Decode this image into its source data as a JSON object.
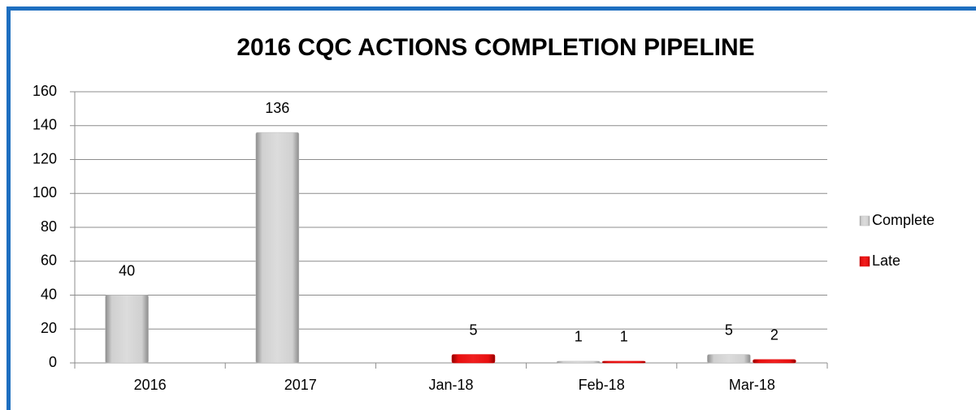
{
  "chart_data": {
    "type": "bar",
    "title": "2016 CQC ACTIONS COMPLETION PIPELINE",
    "categories": [
      "2016",
      "2017",
      "Jan-18",
      "Feb-18",
      "Mar-18"
    ],
    "series": [
      {
        "name": "Complete",
        "color": "#c0c0c0",
        "values": [
          40,
          136,
          null,
          1,
          5
        ]
      },
      {
        "name": "Late",
        "color": "#e00000",
        "values": [
          null,
          null,
          5,
          1,
          2
        ]
      }
    ],
    "ylim": [
      0,
      160
    ],
    "yticks": [
      0,
      20,
      40,
      60,
      80,
      100,
      120,
      140,
      160
    ],
    "grid": true,
    "legend": "right"
  }
}
